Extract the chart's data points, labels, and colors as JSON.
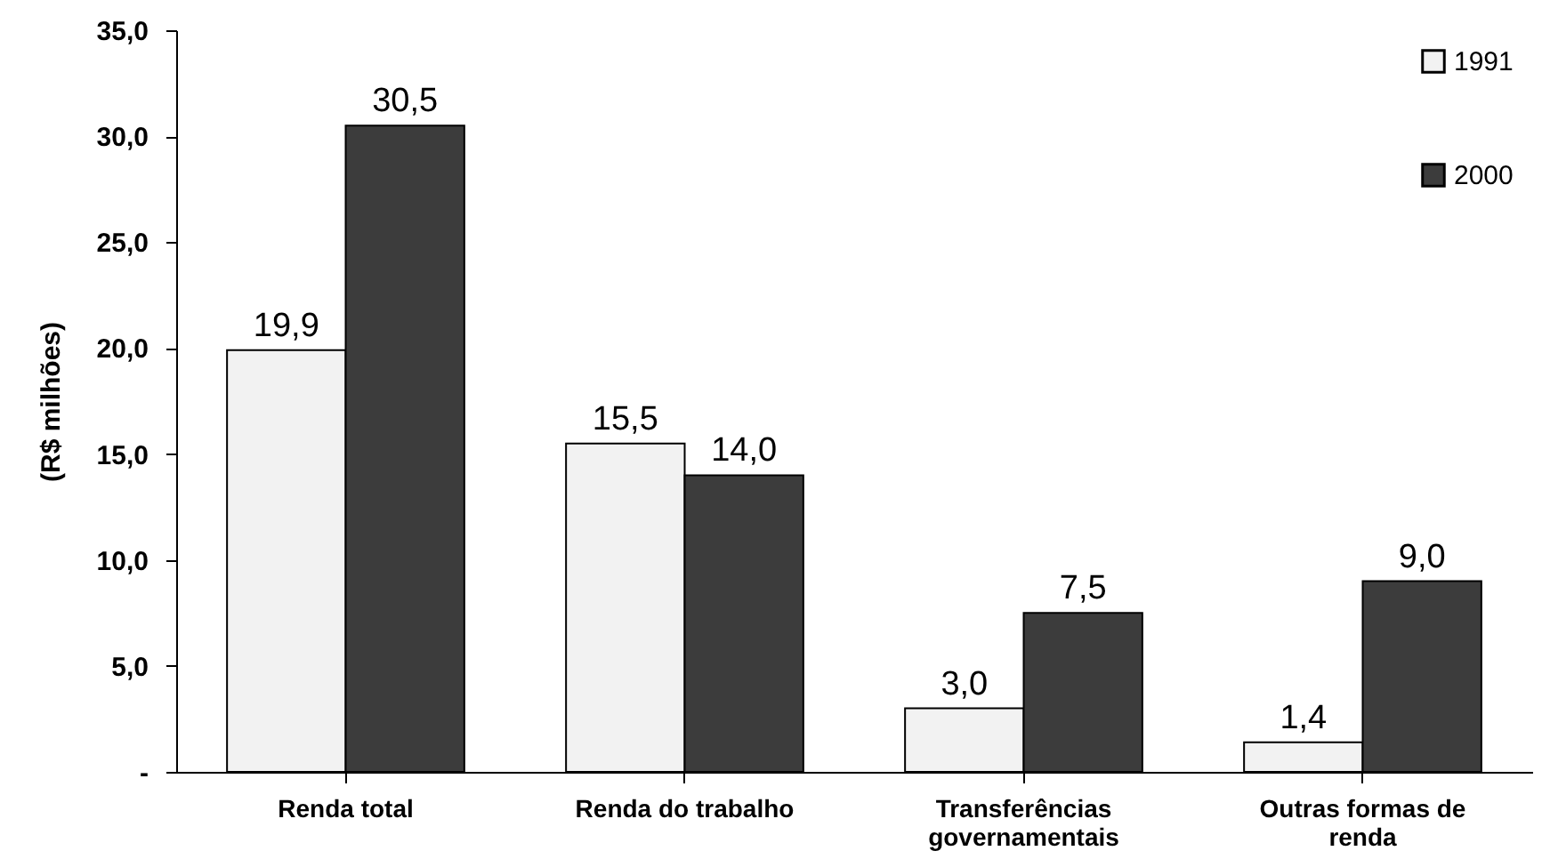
{
  "chart_data": {
    "type": "bar",
    "ylabel": "(R$ milhões)",
    "categories": [
      "Renda total",
      "Renda do trabalho",
      "Transferências\ngovernamentais",
      "Outras formas de\nrenda"
    ],
    "series": [
      {
        "name": "1991",
        "color": "#f2f2f2",
        "values": [
          19.9,
          15.5,
          3.0,
          1.4
        ],
        "value_labels": [
          "19,9",
          "15,5",
          "3,0",
          "1,4"
        ]
      },
      {
        "name": "2000",
        "color": "#3c3c3c",
        "values": [
          30.5,
          14.0,
          7.5,
          9.0
        ],
        "value_labels": [
          "30,5",
          "14,0",
          "7,5",
          "9,0"
        ]
      }
    ],
    "ylim": [
      0,
      35
    ],
    "yticks": [
      {
        "value": 0,
        "label": "-"
      },
      {
        "value": 5,
        "label": "5,0"
      },
      {
        "value": 10,
        "label": "10,0"
      },
      {
        "value": 15,
        "label": "15,0"
      },
      {
        "value": 20,
        "label": "20,0"
      },
      {
        "value": 25,
        "label": "25,0"
      },
      {
        "value": 30,
        "label": "30,0"
      },
      {
        "value": 35,
        "label": "35,0"
      }
    ],
    "grid": false,
    "legend": "top right"
  }
}
